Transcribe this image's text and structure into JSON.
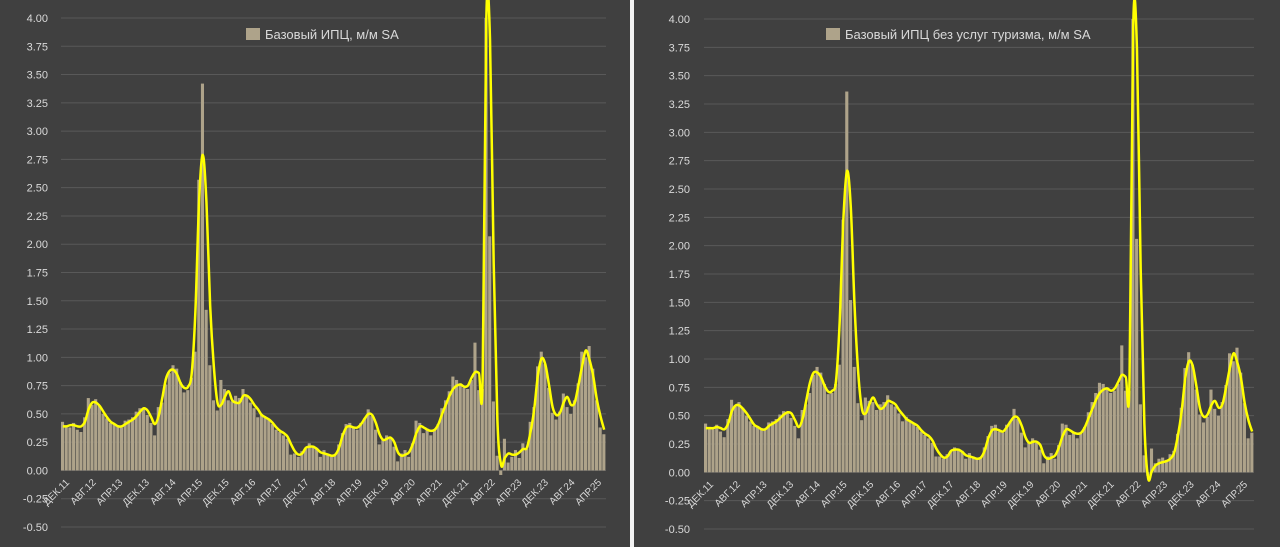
{
  "colors": {
    "panel_bg": "#404040",
    "bar": "#aea38a",
    "line": "#ffff00",
    "grid": "#595959",
    "text": "#d9d9d9"
  },
  "chart_data": [
    {
      "type": "bar",
      "overlay": "line",
      "legend": "Базовый ИПЦ, м/м SA",
      "legend_position": "top-center",
      "grid": true,
      "ylim": [
        -0.5,
        4.0
      ],
      "yticks": [
        "4.00",
        "3.75",
        "3.50",
        "3.25",
        "3.00",
        "2.75",
        "2.50",
        "2.25",
        "2.00",
        "1.75",
        "1.50",
        "1.25",
        "1.00",
        "0.75",
        "0.50",
        "0.25",
        "0.00",
        "-0.25",
        "-0.50"
      ],
      "xticks": [
        "ДЕК.11",
        "АВГ.12",
        "АПР.13",
        "ДЕК.13",
        "АВГ.14",
        "АПР.15",
        "ДЕК.15",
        "АВГ.16",
        "АПР.17",
        "ДЕК.17",
        "АВГ.18",
        "АПР.19",
        "ДЕК.19",
        "АВГ.20",
        "АПР.21",
        "ДЕК.21",
        "АВГ.22",
        "АПР.23",
        "ДЕК.23",
        "АВГ.24",
        "АПР.25"
      ],
      "bar_values": [
        0.43,
        0.39,
        0.38,
        0.42,
        0.36,
        0.34,
        0.47,
        0.64,
        0.58,
        0.63,
        0.57,
        0.5,
        0.46,
        0.42,
        0.41,
        0.4,
        0.38,
        0.44,
        0.45,
        0.47,
        0.52,
        0.55,
        0.54,
        0.49,
        0.42,
        0.31,
        0.56,
        0.6,
        0.76,
        0.86,
        0.93,
        0.9,
        0.78,
        0.69,
        0.71,
        0.82,
        1.05,
        2.57,
        3.42,
        1.42,
        0.93,
        0.62,
        0.53,
        0.8,
        0.72,
        0.62,
        0.61,
        0.66,
        0.64,
        0.72,
        0.66,
        0.6,
        0.55,
        0.47,
        0.5,
        0.47,
        0.45,
        0.41,
        0.36,
        0.34,
        0.31,
        0.28,
        0.14,
        0.15,
        0.12,
        0.17,
        0.19,
        0.24,
        0.22,
        0.2,
        0.12,
        0.18,
        0.15,
        0.12,
        0.14,
        0.23,
        0.33,
        0.41,
        0.42,
        0.38,
        0.36,
        0.42,
        0.46,
        0.54,
        0.48,
        0.36,
        0.23,
        0.27,
        0.31,
        0.28,
        0.21,
        0.08,
        0.15,
        0.18,
        0.12,
        0.24,
        0.44,
        0.42,
        0.33,
        0.37,
        0.31,
        0.36,
        0.41,
        0.55,
        0.62,
        0.7,
        0.83,
        0.8,
        0.77,
        0.73,
        0.72,
        0.8,
        1.13,
        0.71,
        0.72,
        4.0,
        2.07,
        0.61,
        0.13,
        -0.04,
        0.28,
        0.07,
        0.12,
        0.18,
        0.11,
        0.24,
        0.19,
        0.43,
        0.56,
        0.92,
        1.05,
        0.94,
        0.73,
        0.51,
        0.45,
        0.52,
        0.68,
        0.56,
        0.5,
        0.62,
        0.77,
        1.05,
        1.0,
        1.1,
        0.9,
        0.62,
        0.38,
        0.32
      ],
      "line_values": [
        0.39,
        0.39,
        0.4,
        0.4,
        0.39,
        0.39,
        0.43,
        0.54,
        0.6,
        0.6,
        0.57,
        0.52,
        0.47,
        0.43,
        0.41,
        0.39,
        0.39,
        0.41,
        0.43,
        0.45,
        0.48,
        0.52,
        0.55,
        0.53,
        0.47,
        0.41,
        0.48,
        0.64,
        0.81,
        0.88,
        0.89,
        0.85,
        0.77,
        0.73,
        0.74,
        0.86,
        1.41,
        2.38,
        2.79,
        2.37,
        1.46,
        0.92,
        0.6,
        0.58,
        0.65,
        0.7,
        0.62,
        0.6,
        0.6,
        0.66,
        0.66,
        0.63,
        0.58,
        0.54,
        0.49,
        0.47,
        0.45,
        0.42,
        0.38,
        0.35,
        0.33,
        0.3,
        0.23,
        0.17,
        0.14,
        0.15,
        0.2,
        0.21,
        0.21,
        0.19,
        0.16,
        0.15,
        0.14,
        0.13,
        0.14,
        0.2,
        0.31,
        0.38,
        0.39,
        0.38,
        0.38,
        0.41,
        0.46,
        0.5,
        0.49,
        0.42,
        0.32,
        0.27,
        0.28,
        0.29,
        0.25,
        0.16,
        0.13,
        0.14,
        0.16,
        0.23,
        0.33,
        0.39,
        0.38,
        0.36,
        0.35,
        0.36,
        0.41,
        0.5,
        0.58,
        0.66,
        0.72,
        0.75,
        0.76,
        0.74,
        0.75,
        0.82,
        0.87,
        0.86,
        0.81,
        3.99,
        3.81,
        1.83,
        0.45,
        0.05,
        0.11,
        0.15,
        0.14,
        0.14,
        0.16,
        0.19,
        0.2,
        0.34,
        0.54,
        0.84,
        0.99,
        0.94,
        0.76,
        0.56,
        0.49,
        0.51,
        0.6,
        0.65,
        0.58,
        0.6,
        0.75,
        0.92,
        1.06,
        0.98,
        0.84,
        0.63,
        0.48,
        0.36
      ]
    },
    {
      "type": "bar",
      "overlay": "line",
      "legend": "Базовый ИПЦ без услуг туризма, м/м SA",
      "legend_position": "top-center",
      "grid": true,
      "ylim": [
        -0.5,
        4.0
      ],
      "yticks": [
        "4.00",
        "3.75",
        "3.50",
        "3.25",
        "3.00",
        "2.75",
        "2.50",
        "2.25",
        "2.00",
        "1.75",
        "1.50",
        "1.25",
        "1.00",
        "0.75",
        "0.50",
        "0.25",
        "0.00",
        "-0.25",
        "-0.50"
      ],
      "xticks": [
        "ДЕК.11",
        "АВГ.12",
        "АПР.13",
        "ДЕК.13",
        "АВГ.14",
        "АПР.15",
        "ДЕК.15",
        "АВГ.16",
        "АПР.17",
        "ДЕК.17",
        "АВГ.18",
        "АПР.19",
        "ДЕК.19",
        "АВГ.20",
        "АПР.21",
        "ДЕК.21",
        "АВГ.22",
        "АПР.23",
        "ДЕК.23",
        "АВГ.24",
        "АПР.25"
      ],
      "bar_values": [
        0.43,
        0.39,
        0.38,
        0.42,
        0.36,
        0.31,
        0.47,
        0.64,
        0.58,
        0.62,
        0.57,
        0.5,
        0.45,
        0.41,
        0.4,
        0.39,
        0.38,
        0.44,
        0.45,
        0.47,
        0.51,
        0.54,
        0.53,
        0.48,
        0.41,
        0.3,
        0.55,
        0.6,
        0.7,
        0.86,
        0.93,
        0.88,
        0.78,
        0.69,
        0.7,
        0.78,
        0.95,
        2.23,
        3.36,
        1.52,
        0.93,
        0.61,
        0.46,
        0.66,
        0.63,
        0.62,
        0.55,
        0.6,
        0.62,
        0.68,
        0.6,
        0.58,
        0.52,
        0.45,
        0.49,
        0.45,
        0.43,
        0.4,
        0.36,
        0.33,
        0.3,
        0.26,
        0.14,
        0.14,
        0.12,
        0.16,
        0.19,
        0.22,
        0.2,
        0.19,
        0.12,
        0.17,
        0.14,
        0.12,
        0.13,
        0.22,
        0.32,
        0.41,
        0.42,
        0.36,
        0.35,
        0.42,
        0.45,
        0.56,
        0.47,
        0.35,
        0.22,
        0.27,
        0.3,
        0.26,
        0.2,
        0.08,
        0.14,
        0.17,
        0.12,
        0.24,
        0.43,
        0.42,
        0.33,
        0.35,
        0.3,
        0.35,
        0.4,
        0.53,
        0.62,
        0.7,
        0.79,
        0.78,
        0.75,
        0.7,
        0.72,
        0.78,
        1.12,
        0.72,
        0.72,
        4.0,
        2.06,
        0.6,
        0.15,
        -0.03,
        0.21,
        0.08,
        0.12,
        0.13,
        0.11,
        0.16,
        0.19,
        0.34,
        0.57,
        0.92,
        1.06,
        0.95,
        0.73,
        0.51,
        0.44,
        0.49,
        0.73,
        0.56,
        0.5,
        0.62,
        0.77,
        1.05,
        0.98,
        1.1,
        0.88,
        0.61,
        0.3,
        0.35
      ],
      "line_values": [
        0.39,
        0.39,
        0.39,
        0.4,
        0.39,
        0.38,
        0.43,
        0.54,
        0.59,
        0.59,
        0.56,
        0.52,
        0.47,
        0.42,
        0.4,
        0.38,
        0.38,
        0.41,
        0.43,
        0.45,
        0.48,
        0.51,
        0.53,
        0.52,
        0.46,
        0.4,
        0.47,
        0.63,
        0.79,
        0.88,
        0.88,
        0.84,
        0.76,
        0.71,
        0.72,
        0.8,
        1.32,
        2.23,
        2.66,
        2.34,
        1.48,
        0.88,
        0.56,
        0.52,
        0.6,
        0.66,
        0.6,
        0.56,
        0.58,
        0.63,
        0.62,
        0.6,
        0.55,
        0.51,
        0.47,
        0.45,
        0.43,
        0.41,
        0.37,
        0.34,
        0.32,
        0.28,
        0.21,
        0.16,
        0.13,
        0.14,
        0.19,
        0.2,
        0.2,
        0.18,
        0.15,
        0.14,
        0.13,
        0.12,
        0.13,
        0.19,
        0.3,
        0.37,
        0.38,
        0.37,
        0.36,
        0.4,
        0.45,
        0.49,
        0.48,
        0.41,
        0.31,
        0.26,
        0.27,
        0.27,
        0.24,
        0.15,
        0.12,
        0.13,
        0.15,
        0.22,
        0.32,
        0.38,
        0.37,
        0.35,
        0.34,
        0.35,
        0.4,
        0.48,
        0.56,
        0.64,
        0.7,
        0.73,
        0.74,
        0.72,
        0.74,
        0.8,
        0.86,
        0.84,
        0.8,
        3.93,
        3.74,
        1.8,
        0.43,
        -0.05,
        0.01,
        0.06,
        0.08,
        0.09,
        0.1,
        0.12,
        0.17,
        0.32,
        0.53,
        0.83,
        0.98,
        0.94,
        0.76,
        0.56,
        0.49,
        0.51,
        0.59,
        0.63,
        0.57,
        0.6,
        0.75,
        0.92,
        1.05,
        0.97,
        0.83,
        0.61,
        0.46,
        0.36
      ]
    }
  ]
}
